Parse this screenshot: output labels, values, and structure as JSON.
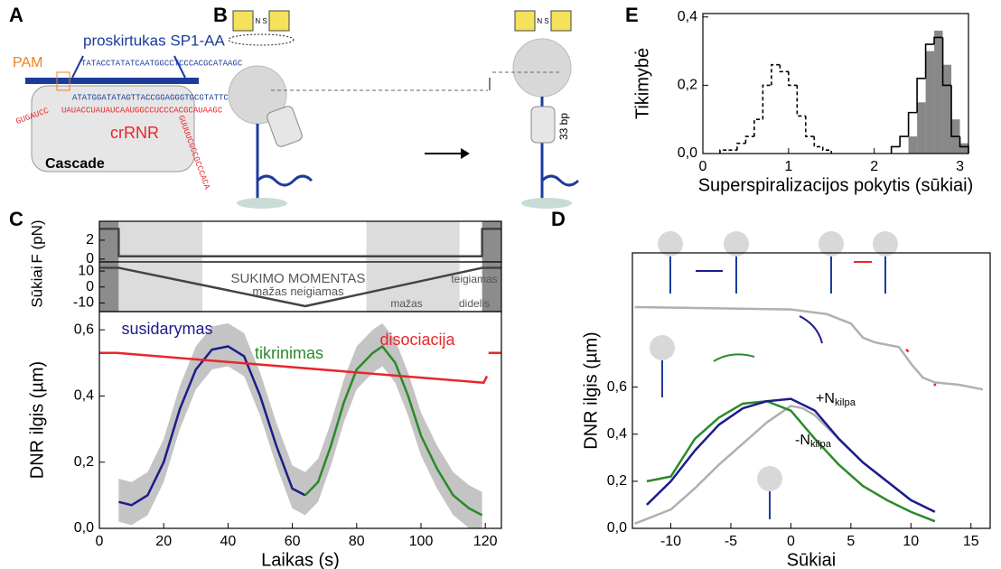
{
  "panel_labels": [
    "A",
    "B",
    "C",
    "D",
    "E"
  ],
  "diagram_a": {
    "pam": "PAM",
    "spacer": "proskirtukas SP1-AA",
    "target_top": "TATACCTATATCAATGGCCTCCCACGCATAAGC",
    "target_bottom": "ATATGGATATAGTTACCGGAGGGTGCGTATTCG",
    "crrna_head": "GUGAUCC",
    "crrna": "UAUACCUAUAUCAAUGGCCUCCCACGCAUAAGC",
    "crrna_tail": "GUUUUCGCCGCCCACA",
    "crrna_label": "crRNR",
    "complex": "Cascade"
  },
  "diagram_b": {
    "magnet": "N S",
    "bp": "33 bp"
  },
  "chart_data": [
    {
      "type": "histogram",
      "xlabel": "Superspiralizacijos pokytis (sūkiai)",
      "ylabel": "Tikimybė",
      "xlim": [
        0,
        3.1
      ],
      "ylim": [
        0,
        0.41
      ],
      "xticks": [
        0,
        1,
        2,
        3
      ],
      "yticks": [
        {
          "value": 0,
          "label": "0,0"
        },
        {
          "value": 0.2,
          "label": "0,2"
        },
        {
          "value": 0.4,
          "label": "0,4"
        }
      ],
      "series": [
        {
          "color": "#888888",
          "style": "filled",
          "bins": [
            2.4,
            2.5,
            2.6,
            2.7,
            2.8,
            2.9,
            3.0,
            3.1
          ],
          "values": [
            0.05,
            0.15,
            0.3,
            0.36,
            0.26,
            0.1,
            0.03
          ]
        },
        {
          "color": "#000000",
          "style": "dashed",
          "bins": [
            0.2,
            0.3,
            0.4,
            0.5,
            0.6,
            0.7,
            0.8,
            0.9,
            1.0,
            1.1,
            1.2,
            1.3,
            1.4,
            1.5
          ],
          "values": [
            0.01,
            0.01,
            0.03,
            0.05,
            0.1,
            0.2,
            0.26,
            0.24,
            0.2,
            0.11,
            0.05,
            0.02,
            0.01
          ]
        },
        {
          "color": "#000000",
          "style": "solid",
          "bins": [
            2.2,
            2.3,
            2.4,
            2.5,
            2.6,
            2.7,
            2.8,
            2.9,
            3.0,
            3.1
          ],
          "values": [
            0.02,
            0.05,
            0.12,
            0.22,
            0.32,
            0.34,
            0.2,
            0.05,
            0.02
          ]
        }
      ]
    },
    {
      "type": "line",
      "ylabel": "F (pN)",
      "xlim": [
        0,
        125
      ],
      "ylim": [
        -0.3,
        4
      ],
      "yticks": [
        0,
        2
      ],
      "regions": [
        {
          "x": [
            0,
            6
          ],
          "color": "#8c8c8c"
        },
        {
          "x": [
            6,
            32
          ],
          "color": "#dcdcdc"
        },
        {
          "x": [
            83,
            112
          ],
          "color": "#dcdcdc"
        },
        {
          "x": [
            119,
            125
          ],
          "color": "#8c8c8c"
        }
      ],
      "series": [
        {
          "color": "#444444",
          "x": [
            0,
            6,
            6,
            119,
            119,
            125
          ],
          "values": [
            3.2,
            3.2,
            0.3,
            0.3,
            3.2,
            3.2
          ]
        }
      ]
    },
    {
      "type": "line",
      "ylabel": "Sūkiai",
      "xlim": [
        0,
        125
      ],
      "ylim": [
        -15.4,
        15.7
      ],
      "yticks": [
        -10,
        0,
        10
      ],
      "regions": [
        {
          "x": [
            0,
            6
          ],
          "color": "#8c8c8c"
        },
        {
          "x": [
            6,
            32
          ],
          "color": "#dcdcdc"
        },
        {
          "x": [
            83,
            112
          ],
          "color": "#dcdcdc"
        },
        {
          "x": [
            119,
            125
          ],
          "color": "#8c8c8c"
        }
      ],
      "annotations": [
        {
          "text": "SUKIMO MOMENTAS",
          "color": "#555555"
        },
        {
          "text": "mažas neigiamas",
          "color": "#555555"
        },
        {
          "text": "teigiamas",
          "color": "#555555"
        },
        {
          "text": "mažas",
          "color": "#555555"
        },
        {
          "text": "didelis",
          "color": "#555555"
        }
      ],
      "series": [
        {
          "color": "#444444",
          "x": [
            0,
            6,
            64,
            119,
            125
          ],
          "values": [
            12,
            12,
            -12,
            12,
            12
          ]
        }
      ]
    },
    {
      "type": "line",
      "xlabel": "Laikas (s)",
      "ylabel": "DNR ilgis (µm)",
      "xlim": [
        0,
        125
      ],
      "ylim": [
        0,
        0.655
      ],
      "xticks": [
        0,
        20,
        40,
        60,
        80,
        100,
        120
      ],
      "yticks": [
        {
          "value": 0,
          "label": "0,0"
        },
        {
          "value": 0.2,
          "label": "0,2"
        },
        {
          "value": 0.4,
          "label": "0,4"
        },
        {
          "value": 0.6,
          "label": "0,6"
        }
      ],
      "band": {
        "color": "#c4c4c4",
        "x": [
          6,
          10,
          15,
          20,
          25,
          30,
          35,
          40,
          45,
          50,
          55,
          60,
          64,
          68,
          72,
          76,
          80,
          85,
          88,
          92,
          96,
          100,
          105,
          110,
          115,
          119
        ],
        "lower": [
          0.02,
          0.01,
          0.04,
          0.14,
          0.3,
          0.42,
          0.48,
          0.49,
          0.46,
          0.34,
          0.19,
          0.06,
          0.04,
          0.08,
          0.19,
          0.32,
          0.42,
          0.47,
          0.49,
          0.44,
          0.34,
          0.22,
          0.12,
          0.04,
          0.0,
          0.0
        ],
        "upper": [
          0.15,
          0.14,
          0.17,
          0.27,
          0.43,
          0.55,
          0.61,
          0.62,
          0.59,
          0.47,
          0.32,
          0.19,
          0.17,
          0.21,
          0.32,
          0.45,
          0.55,
          0.6,
          0.62,
          0.57,
          0.47,
          0.35,
          0.25,
          0.17,
          0.13,
          0.11
        ]
      },
      "annotations": [
        {
          "text": "susidarymas",
          "color": "#1c1c8c"
        },
        {
          "text": "tikrinimas",
          "color": "#2a8a2a"
        },
        {
          "text": "disociacija",
          "color": "#e8262a"
        }
      ],
      "series": [
        {
          "color": "#1c1c8c",
          "x": [
            6,
            10,
            15,
            20,
            25,
            30,
            35,
            40,
            45,
            50,
            55,
            60,
            64
          ],
          "values": [
            0.08,
            0.07,
            0.1,
            0.2,
            0.36,
            0.48,
            0.54,
            0.55,
            0.52,
            0.4,
            0.25,
            0.12,
            0.1
          ]
        },
        {
          "color": "#2a8a2a",
          "x": [
            64,
            68,
            72,
            76,
            80,
            85,
            88,
            92,
            96,
            100,
            105,
            110,
            115,
            119
          ],
          "values": [
            0.1,
            0.14,
            0.25,
            0.38,
            0.48,
            0.53,
            0.55,
            0.5,
            0.4,
            0.28,
            0.18,
            0.1,
            0.06,
            0.04
          ]
        },
        {
          "color": "#e8262a",
          "x": [
            0,
            5.5,
            119.5,
            120.5,
            120.8,
            121,
            125
          ],
          "values": [
            0.53,
            0.53,
            0.44,
            0.46,
            null,
            0.53,
            0.53
          ]
        }
      ]
    },
    {
      "type": "line",
      "xlabel": "Sūkiai",
      "ylabel": "DNR ilgis (µm)",
      "xlim": [
        -13.2,
        16.6
      ],
      "ylim": [
        0,
        1.17
      ],
      "xticks": [
        -10,
        -5,
        0,
        5,
        10,
        15
      ],
      "yticks": [
        {
          "value": 0,
          "label": "0,0"
        },
        {
          "value": 0.2,
          "label": "0,2"
        },
        {
          "value": 0.4,
          "label": "0,4"
        },
        {
          "value": 0.6,
          "label": "0,6"
        }
      ],
      "annotations": [
        {
          "text": "+N",
          "sub": "kilpa",
          "color": "#000000"
        },
        {
          "text": "-N",
          "sub": "kilpa",
          "color": "#000000"
        }
      ],
      "series": [
        {
          "color": "#b0b0b0",
          "x": [
            -13,
            -12,
            -10,
            -8,
            -6,
            -4,
            -2,
            0,
            1,
            2,
            4,
            6,
            8,
            10,
            12
          ],
          "values": [
            0.02,
            0.04,
            0.08,
            0.17,
            0.27,
            0.36,
            0.45,
            0.52,
            0.51,
            0.48,
            0.38,
            0.28,
            0.2,
            0.12,
            0.07
          ]
        },
        {
          "color": "#b0b0b0",
          "x": [
            -13,
            0,
            3,
            5,
            6,
            7,
            9,
            10,
            11,
            12,
            14,
            16
          ],
          "values": [
            0.94,
            0.93,
            0.91,
            0.87,
            0.81,
            0.79,
            0.77,
            0.7,
            0.64,
            0.62,
            0.61,
            0.59
          ]
        },
        {
          "color": "#2a8a2a",
          "x": [
            -12,
            -10,
            -8,
            -6,
            -4,
            -2,
            0,
            2,
            4,
            6,
            8,
            10,
            12
          ],
          "values": [
            0.2,
            0.22,
            0.38,
            0.47,
            0.53,
            0.54,
            0.5,
            0.38,
            0.27,
            0.18,
            0.12,
            0.07,
            0.03
          ]
        },
        {
          "color": "#1c1c8c",
          "x": [
            -12,
            -10,
            -8,
            -6,
            -4,
            -2,
            0,
            2,
            4,
            6,
            8,
            10,
            12
          ],
          "values": [
            0.1,
            0.2,
            0.33,
            0.44,
            0.51,
            0.54,
            0.55,
            0.5,
            0.38,
            0.28,
            0.2,
            0.12,
            0.07
          ]
        },
        {
          "color": "#e8262a",
          "x": [
            9.6,
            9.8,
            null,
            11.9,
            12.1
          ],
          "values": [
            0.76,
            0.75,
            null,
            0.61,
            0.61
          ]
        }
      ]
    }
  ]
}
